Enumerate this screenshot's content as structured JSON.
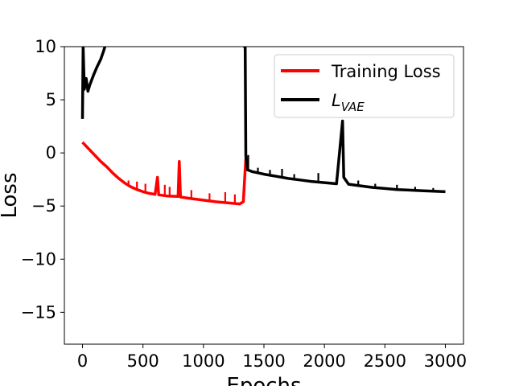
{
  "chart_data": {
    "type": "line",
    "title": "",
    "xlabel": "Epochs",
    "ylabel": "Loss",
    "xlim": [
      -150,
      3150
    ],
    "ylim": [
      -18,
      10
    ],
    "x_ticks": [
      0,
      500,
      1000,
      1500,
      2000,
      2500,
      3000
    ],
    "x_tick_labels": [
      "0",
      "500",
      "1000",
      "1500",
      "2000",
      "2500",
      "3000"
    ],
    "y_ticks": [
      10,
      5,
      0,
      -5,
      -10,
      -15
    ],
    "y_tick_labels": [
      "10",
      "5",
      "0",
      "−5",
      "−10",
      "−15"
    ],
    "grid": false,
    "legend_position": "top-right",
    "series": [
      {
        "name": "Training Loss",
        "color": "#ff0000",
        "points": [
          [
            0,
            1.0
          ],
          [
            50,
            0.4
          ],
          [
            100,
            -0.2
          ],
          [
            150,
            -0.8
          ],
          [
            200,
            -1.3
          ],
          [
            250,
            -1.9
          ],
          [
            300,
            -2.4
          ],
          [
            350,
            -2.85
          ],
          [
            400,
            -3.2
          ],
          [
            450,
            -3.45
          ],
          [
            500,
            -3.65
          ],
          [
            550,
            -3.8
          ],
          [
            600,
            -3.9
          ],
          [
            620,
            -2.3
          ],
          [
            630,
            -3.95
          ],
          [
            700,
            -4.05
          ],
          [
            790,
            -4.1
          ],
          [
            800,
            -0.8
          ],
          [
            810,
            -4.15
          ],
          [
            900,
            -4.3
          ],
          [
            1000,
            -4.45
          ],
          [
            1100,
            -4.6
          ],
          [
            1200,
            -4.7
          ],
          [
            1300,
            -4.8
          ],
          [
            1330,
            -4.6
          ],
          [
            1350,
            -0.5
          ]
        ],
        "spikes": [
          [
            380,
            -2.6
          ],
          [
            450,
            -2.7
          ],
          [
            520,
            -2.9
          ],
          [
            680,
            -3.0
          ],
          [
            720,
            -3.2
          ],
          [
            900,
            -3.5
          ],
          [
            1050,
            -3.8
          ],
          [
            1180,
            -3.7
          ],
          [
            1260,
            -3.9
          ]
        ]
      },
      {
        "name": "L_VAE",
        "label_main": "L",
        "label_sub": "VAE",
        "color": "#000000",
        "points": [
          [
            0,
            3.2
          ],
          [
            5,
            10
          ],
          [
            15,
            6.0
          ],
          [
            30,
            7.0
          ],
          [
            45,
            5.8
          ],
          [
            60,
            6.4
          ],
          [
            90,
            7.3
          ],
          [
            120,
            8.1
          ],
          [
            150,
            8.8
          ],
          [
            175,
            9.6
          ],
          [
            185,
            10
          ]
        ],
        "segment2": [
          [
            1330,
            10
          ],
          [
            1345,
            10
          ],
          [
            1350,
            -0.3
          ],
          [
            1365,
            -1.6
          ],
          [
            1400,
            -1.75
          ],
          [
            1500,
            -2.0
          ],
          [
            1600,
            -2.2
          ],
          [
            1700,
            -2.4
          ],
          [
            1800,
            -2.55
          ],
          [
            1900,
            -2.7
          ],
          [
            2000,
            -2.8
          ],
          [
            2100,
            -2.9
          ],
          [
            2150,
            3.0
          ],
          [
            2160,
            -2.3
          ],
          [
            2200,
            -2.95
          ],
          [
            2300,
            -3.1
          ],
          [
            2400,
            -3.25
          ],
          [
            2500,
            -3.35
          ],
          [
            2600,
            -3.45
          ],
          [
            2700,
            -3.5
          ],
          [
            2800,
            -3.55
          ],
          [
            2900,
            -3.6
          ],
          [
            3000,
            -3.65
          ]
        ],
        "spikes": [
          [
            1370,
            -0.2
          ],
          [
            1450,
            -1.4
          ],
          [
            1550,
            -1.6
          ],
          [
            1650,
            -1.5
          ],
          [
            1750,
            -2.0
          ],
          [
            1950,
            -1.9
          ],
          [
            2100,
            -2.3
          ],
          [
            2280,
            -2.6
          ],
          [
            2420,
            -2.9
          ],
          [
            2600,
            -3.0
          ],
          [
            2750,
            -3.2
          ],
          [
            2900,
            -3.3
          ]
        ]
      }
    ]
  }
}
